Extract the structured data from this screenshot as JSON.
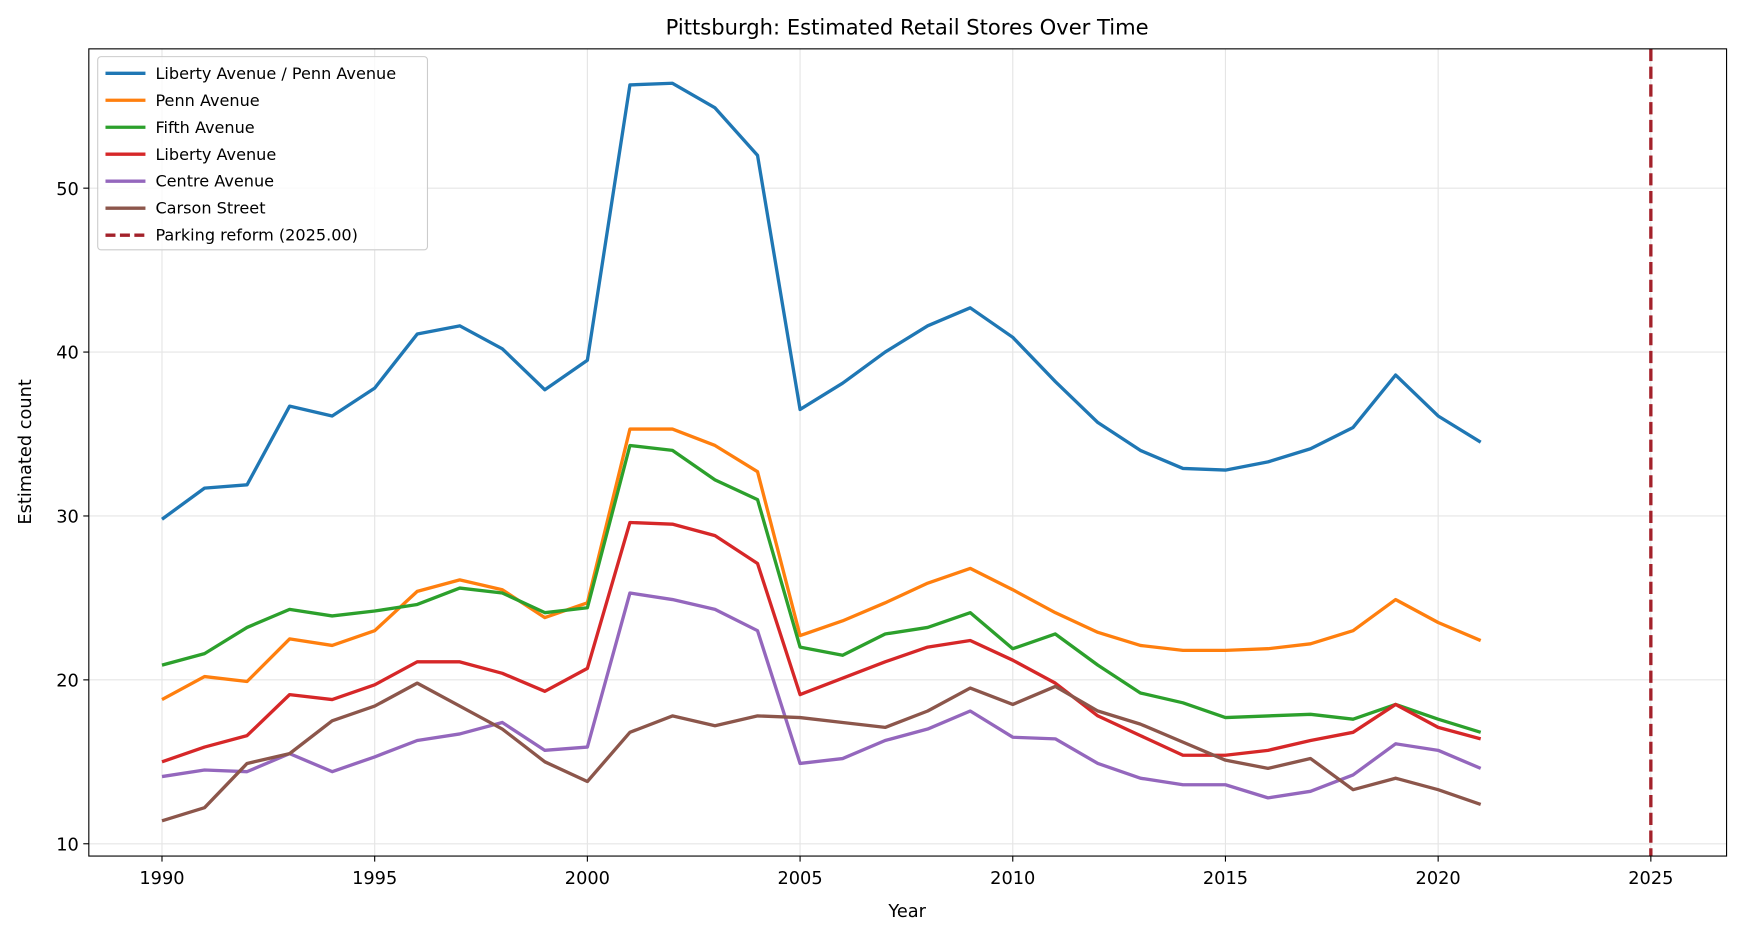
{
  "chart_data": {
    "type": "line",
    "title": "Pittsburgh: Estimated Retail Stores Over Time",
    "xlabel": "Year",
    "ylabel": "Estimated count",
    "xlim": [
      1988.28,
      2026.78
    ],
    "ylim": [
      9.25,
      58.5
    ],
    "xticks": [
      1990,
      1995,
      2000,
      2005,
      2010,
      2015,
      2020,
      2025
    ],
    "yticks": [
      10,
      20,
      30,
      40,
      50
    ],
    "grid": true,
    "legend_position": "top-left",
    "x": [
      1990,
      1991,
      1992,
      1993,
      1994,
      1995,
      1996,
      1997,
      1998,
      1999,
      2000,
      2001,
      2002,
      2003,
      2004,
      2005,
      2006,
      2007,
      2008,
      2009,
      2010,
      2011,
      2012,
      2013,
      2014,
      2015,
      2016,
      2017,
      2018,
      2019,
      2020,
      2021
    ],
    "series": [
      {
        "name": "Liberty Avenue / Penn Avenue",
        "color": "#1f77b4",
        "values": [
          29.8,
          31.7,
          31.9,
          36.7,
          36.1,
          37.8,
          41.1,
          41.6,
          40.2,
          37.7,
          39.5,
          56.3,
          56.4,
          54.9,
          52.0,
          36.5,
          38.1,
          40.0,
          41.6,
          42.7,
          40.9,
          38.2,
          35.7,
          34.0,
          32.9,
          32.8,
          33.3,
          34.1,
          35.4,
          38.6,
          36.1,
          34.5
        ]
      },
      {
        "name": "Penn Avenue",
        "color": "#ff7f0e",
        "values": [
          18.8,
          20.2,
          19.9,
          22.5,
          22.1,
          23.0,
          25.4,
          26.1,
          25.5,
          23.8,
          24.7,
          35.3,
          35.3,
          34.3,
          32.7,
          22.7,
          23.6,
          24.7,
          25.9,
          26.8,
          25.5,
          24.1,
          22.9,
          22.1,
          21.8,
          21.8,
          21.9,
          22.2,
          23.0,
          24.9,
          23.5,
          22.4
        ]
      },
      {
        "name": "Fifth Avenue",
        "color": "#2ca02c",
        "values": [
          20.9,
          21.6,
          23.2,
          24.3,
          23.9,
          24.2,
          24.6,
          25.6,
          25.3,
          24.1,
          24.4,
          34.3,
          34.0,
          32.2,
          31.0,
          22.0,
          21.5,
          22.8,
          23.2,
          24.1,
          21.9,
          22.8,
          20.9,
          19.2,
          18.6,
          17.7,
          17.8,
          17.9,
          17.6,
          18.5,
          17.6,
          16.8
        ]
      },
      {
        "name": "Liberty Avenue",
        "color": "#d62728",
        "values": [
          15.0,
          15.9,
          16.6,
          19.1,
          18.8,
          19.7,
          21.1,
          21.1,
          20.4,
          19.3,
          20.7,
          29.6,
          29.5,
          28.8,
          27.1,
          19.1,
          20.1,
          21.1,
          22.0,
          22.4,
          21.2,
          19.8,
          17.8,
          16.6,
          15.4,
          15.4,
          15.7,
          16.3,
          16.8,
          18.5,
          17.1,
          16.4
        ]
      },
      {
        "name": "Centre Avenue",
        "color": "#9467bd",
        "values": [
          14.1,
          14.5,
          14.4,
          15.5,
          14.4,
          15.3,
          16.3,
          16.7,
          17.4,
          15.7,
          15.9,
          25.3,
          24.9,
          24.3,
          23.0,
          14.9,
          15.2,
          16.3,
          17.0,
          18.1,
          16.5,
          16.4,
          14.9,
          14.0,
          13.6,
          13.6,
          12.8,
          13.2,
          14.2,
          16.1,
          15.7,
          14.6
        ]
      },
      {
        "name": "Carson Street",
        "color": "#8c564b",
        "values": [
          11.4,
          12.2,
          14.9,
          15.5,
          17.5,
          18.4,
          19.8,
          18.4,
          17.0,
          15.0,
          13.8,
          16.8,
          17.8,
          17.2,
          17.8,
          17.7,
          17.4,
          17.1,
          18.1,
          19.5,
          18.5,
          19.6,
          18.1,
          17.3,
          16.2,
          15.1,
          14.6,
          15.2,
          13.3,
          14.0,
          13.3,
          12.4
        ]
      }
    ],
    "vline": {
      "name": "Parking reform (2025.00)",
      "x": 2025.0,
      "color": "#a3212a",
      "style": "dashed"
    }
  }
}
